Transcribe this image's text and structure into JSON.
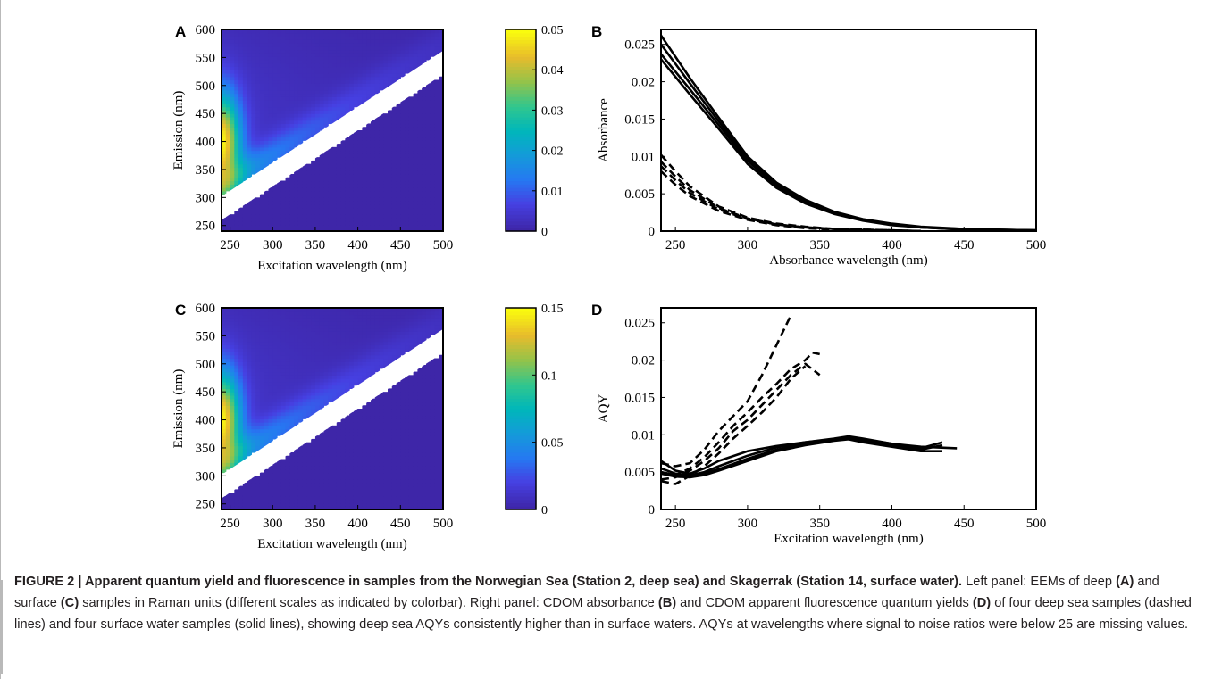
{
  "chart_data": [
    {
      "panel": "A",
      "type": "heatmap",
      "xlabel": "Excitation wavelength (nm)",
      "ylabel": "Emission (nm)",
      "xlim": [
        240,
        500
      ],
      "ylim": [
        240,
        600
      ],
      "xticks": [
        "250",
        "300",
        "350",
        "400",
        "450",
        "500"
      ],
      "yticks": [
        "250",
        "300",
        "350",
        "400",
        "450",
        "500",
        "550",
        "600"
      ],
      "colorbar": {
        "range": [
          0,
          0.05
        ],
        "ticks": [
          "0",
          "0.01",
          "0.02",
          "0.03",
          "0.04",
          "0.05"
        ]
      },
      "peak": {
        "excitation": 245,
        "emission": 400,
        "value": 0.048
      },
      "masked_band": "Rayleigh scatter region (emission ≈ excitation + 20 to + 60 nm)"
    },
    {
      "panel": "B",
      "type": "line",
      "xlabel": "Absorbance wavelength (nm)",
      "ylabel": "Absorbance",
      "xlim": [
        240,
        500
      ],
      "ylim": [
        0,
        0.027
      ],
      "xticks": [
        "250",
        "300",
        "350",
        "400",
        "450",
        "500"
      ],
      "yticks": [
        "0",
        "0.005",
        "0.01",
        "0.015",
        "0.02",
        "0.025"
      ],
      "series": [
        {
          "style": "solid",
          "x": [
            240,
            260,
            280,
            300,
            320,
            340,
            360,
            380,
            400,
            420,
            450,
            500
          ],
          "y": [
            0.0262,
            0.0205,
            0.0152,
            0.01,
            0.0065,
            0.0042,
            0.0026,
            0.0016,
            0.001,
            0.0006,
            0.0003,
            0.0001
          ]
        },
        {
          "style": "solid",
          "x": [
            240,
            260,
            280,
            300,
            320,
            340,
            360,
            380,
            400,
            420,
            450,
            500
          ],
          "y": [
            0.025,
            0.0198,
            0.0147,
            0.0097,
            0.0063,
            0.004,
            0.0025,
            0.0015,
            0.0009,
            0.0005,
            0.0003,
            0.0001
          ]
        },
        {
          "style": "solid",
          "x": [
            240,
            260,
            280,
            300,
            320,
            340,
            360,
            380,
            400,
            420,
            450,
            500
          ],
          "y": [
            0.0237,
            0.019,
            0.0142,
            0.0094,
            0.0061,
            0.0039,
            0.0024,
            0.0015,
            0.0009,
            0.0005,
            0.0002,
            0.0001
          ]
        },
        {
          "style": "solid",
          "x": [
            240,
            260,
            280,
            300,
            320,
            340,
            360,
            380,
            400,
            420,
            450,
            500
          ],
          "y": [
            0.023,
            0.0183,
            0.0137,
            0.009,
            0.0058,
            0.0037,
            0.0023,
            0.0014,
            0.0008,
            0.0005,
            0.0002,
            0.0001
          ]
        },
        {
          "style": "dashed",
          "x": [
            240,
            250,
            260,
            280,
            300,
            320,
            340,
            360,
            380,
            400,
            420
          ],
          "y": [
            0.0102,
            0.008,
            0.006,
            0.0033,
            0.0018,
            0.001,
            0.0006,
            0.0003,
            0.0002,
            0.0001,
            0.0
          ]
        },
        {
          "style": "dashed",
          "x": [
            240,
            250,
            260,
            280,
            300,
            320,
            340,
            360,
            380,
            400,
            420
          ],
          "y": [
            0.0093,
            0.0073,
            0.0055,
            0.0031,
            0.0017,
            0.0009,
            0.0005,
            0.0003,
            0.0002,
            0.0001,
            0.0
          ]
        },
        {
          "style": "dashed",
          "x": [
            240,
            250,
            260,
            280,
            300,
            320,
            340,
            360,
            380,
            400,
            420
          ],
          "y": [
            0.0087,
            0.0068,
            0.0051,
            0.0029,
            0.0016,
            0.0009,
            0.0005,
            0.0003,
            0.0001,
            0.0001,
            0.0
          ]
        },
        {
          "style": "dashed",
          "x": [
            240,
            250,
            260,
            280,
            300,
            320,
            340,
            360,
            380,
            400,
            420
          ],
          "y": [
            0.008,
            0.0062,
            0.0047,
            0.0027,
            0.0015,
            0.0008,
            0.0004,
            0.0002,
            0.0001,
            0.0001,
            0.0
          ]
        }
      ]
    },
    {
      "panel": "C",
      "type": "heatmap",
      "xlabel": "Excitation wavelength (nm)",
      "ylabel": "Emission (nm)",
      "xlim": [
        240,
        500
      ],
      "ylim": [
        240,
        600
      ],
      "xticks": [
        "250",
        "300",
        "350",
        "400",
        "450",
        "500"
      ],
      "yticks": [
        "250",
        "300",
        "350",
        "400",
        "450",
        "500",
        "550",
        "600"
      ],
      "colorbar": {
        "range": [
          0,
          0.15
        ],
        "ticks": [
          "0",
          "0.05",
          "0.1",
          "0.15"
        ]
      },
      "peak": {
        "excitation": 245,
        "emission": 400,
        "value": 0.14
      },
      "masked_band": "Rayleigh scatter region (emission ≈ excitation + 20 to + 60 nm)"
    },
    {
      "panel": "D",
      "type": "line",
      "xlabel": "Excitation wavelength (nm)",
      "ylabel": "AQY",
      "xlim": [
        240,
        500
      ],
      "ylim": [
        0,
        0.027
      ],
      "xticks": [
        "250",
        "300",
        "350",
        "400",
        "450",
        "500"
      ],
      "yticks": [
        "0",
        "0.005",
        "0.01",
        "0.015",
        "0.02",
        "0.025"
      ],
      "series": [
        {
          "style": "dashed",
          "x": [
            240,
            250,
            260,
            270,
            280,
            290,
            300,
            310,
            320,
            330
          ],
          "y": [
            0.0062,
            0.0058,
            0.0062,
            0.008,
            0.0105,
            0.0125,
            0.0145,
            0.018,
            0.022,
            0.026
          ]
        },
        {
          "style": "dashed",
          "x": [
            240,
            250,
            260,
            270,
            280,
            290,
            300,
            310,
            320,
            330,
            340,
            345,
            350
          ],
          "y": [
            0.005,
            0.0046,
            0.0055,
            0.007,
            0.009,
            0.0112,
            0.013,
            0.015,
            0.0168,
            0.0188,
            0.02,
            0.021,
            0.0208
          ]
        },
        {
          "style": "dashed",
          "x": [
            240,
            250,
            260,
            270,
            280,
            290,
            300,
            310,
            320,
            330,
            340,
            350
          ],
          "y": [
            0.004,
            0.0043,
            0.0052,
            0.0065,
            0.0082,
            0.0105,
            0.012,
            0.014,
            0.016,
            0.018,
            0.0195,
            0.018
          ]
        },
        {
          "style": "dashed",
          "x": [
            240,
            250,
            260,
            270,
            280,
            290,
            300,
            310,
            320,
            330,
            340
          ],
          "y": [
            0.0038,
            0.0034,
            0.0045,
            0.0058,
            0.0075,
            0.0095,
            0.0112,
            0.013,
            0.015,
            0.0175,
            0.0192
          ]
        },
        {
          "style": "solid",
          "x": [
            240,
            250,
            260,
            270,
            280,
            300,
            320,
            340,
            360,
            370,
            380,
            400,
            420,
            435
          ],
          "y": [
            0.0065,
            0.0052,
            0.0048,
            0.0055,
            0.0065,
            0.0078,
            0.0085,
            0.009,
            0.0095,
            0.0098,
            0.0095,
            0.0088,
            0.0082,
            0.009
          ]
        },
        {
          "style": "solid",
          "x": [
            240,
            250,
            260,
            270,
            280,
            300,
            320,
            340,
            360,
            370,
            380,
            400,
            420,
            445
          ],
          "y": [
            0.0055,
            0.0048,
            0.0046,
            0.005,
            0.0058,
            0.0072,
            0.0083,
            0.009,
            0.0094,
            0.0096,
            0.0094,
            0.0088,
            0.0084,
            0.0082
          ]
        },
        {
          "style": "solid",
          "x": [
            240,
            250,
            260,
            270,
            280,
            300,
            320,
            340,
            360,
            370,
            380,
            400,
            420,
            435
          ],
          "y": [
            0.005,
            0.0046,
            0.0045,
            0.0048,
            0.0054,
            0.0068,
            0.008,
            0.0088,
            0.0093,
            0.0095,
            0.0092,
            0.0086,
            0.008,
            0.0086
          ]
        },
        {
          "style": "solid",
          "x": [
            240,
            250,
            260,
            270,
            280,
            300,
            320,
            340,
            360,
            370,
            380,
            400,
            420,
            435
          ],
          "y": [
            0.0048,
            0.0044,
            0.0043,
            0.0046,
            0.0052,
            0.0065,
            0.0078,
            0.0086,
            0.0092,
            0.0094,
            0.009,
            0.0084,
            0.0078,
            0.0078
          ]
        }
      ]
    }
  ],
  "caption": {
    "label": "FIGURE 2 | Apparent quantum yield and fluorescence in samples from the Norwegian Sea (Station 2, deep sea) and Skagerrak (Station 14, surface water).",
    "t1": " Left panel: EEMs of deep ",
    "b1": "(A)",
    "t2": " and surface ",
    "b2": "(C)",
    "t3": " samples in Raman units (different scales as indicated by colorbar). Right panel: CDOM absorbance ",
    "b3": "(B)",
    "t4": " and CDOM apparent fluorescence quantum yields ",
    "b4": "(D)",
    "t5": " of four deep sea samples (dashed lines) and four surface water samples (solid lines), showing deep sea AQYs consistently higher than in surface waters. AQYs at wavelengths where signal to noise ratios were below 25 are missing values."
  }
}
